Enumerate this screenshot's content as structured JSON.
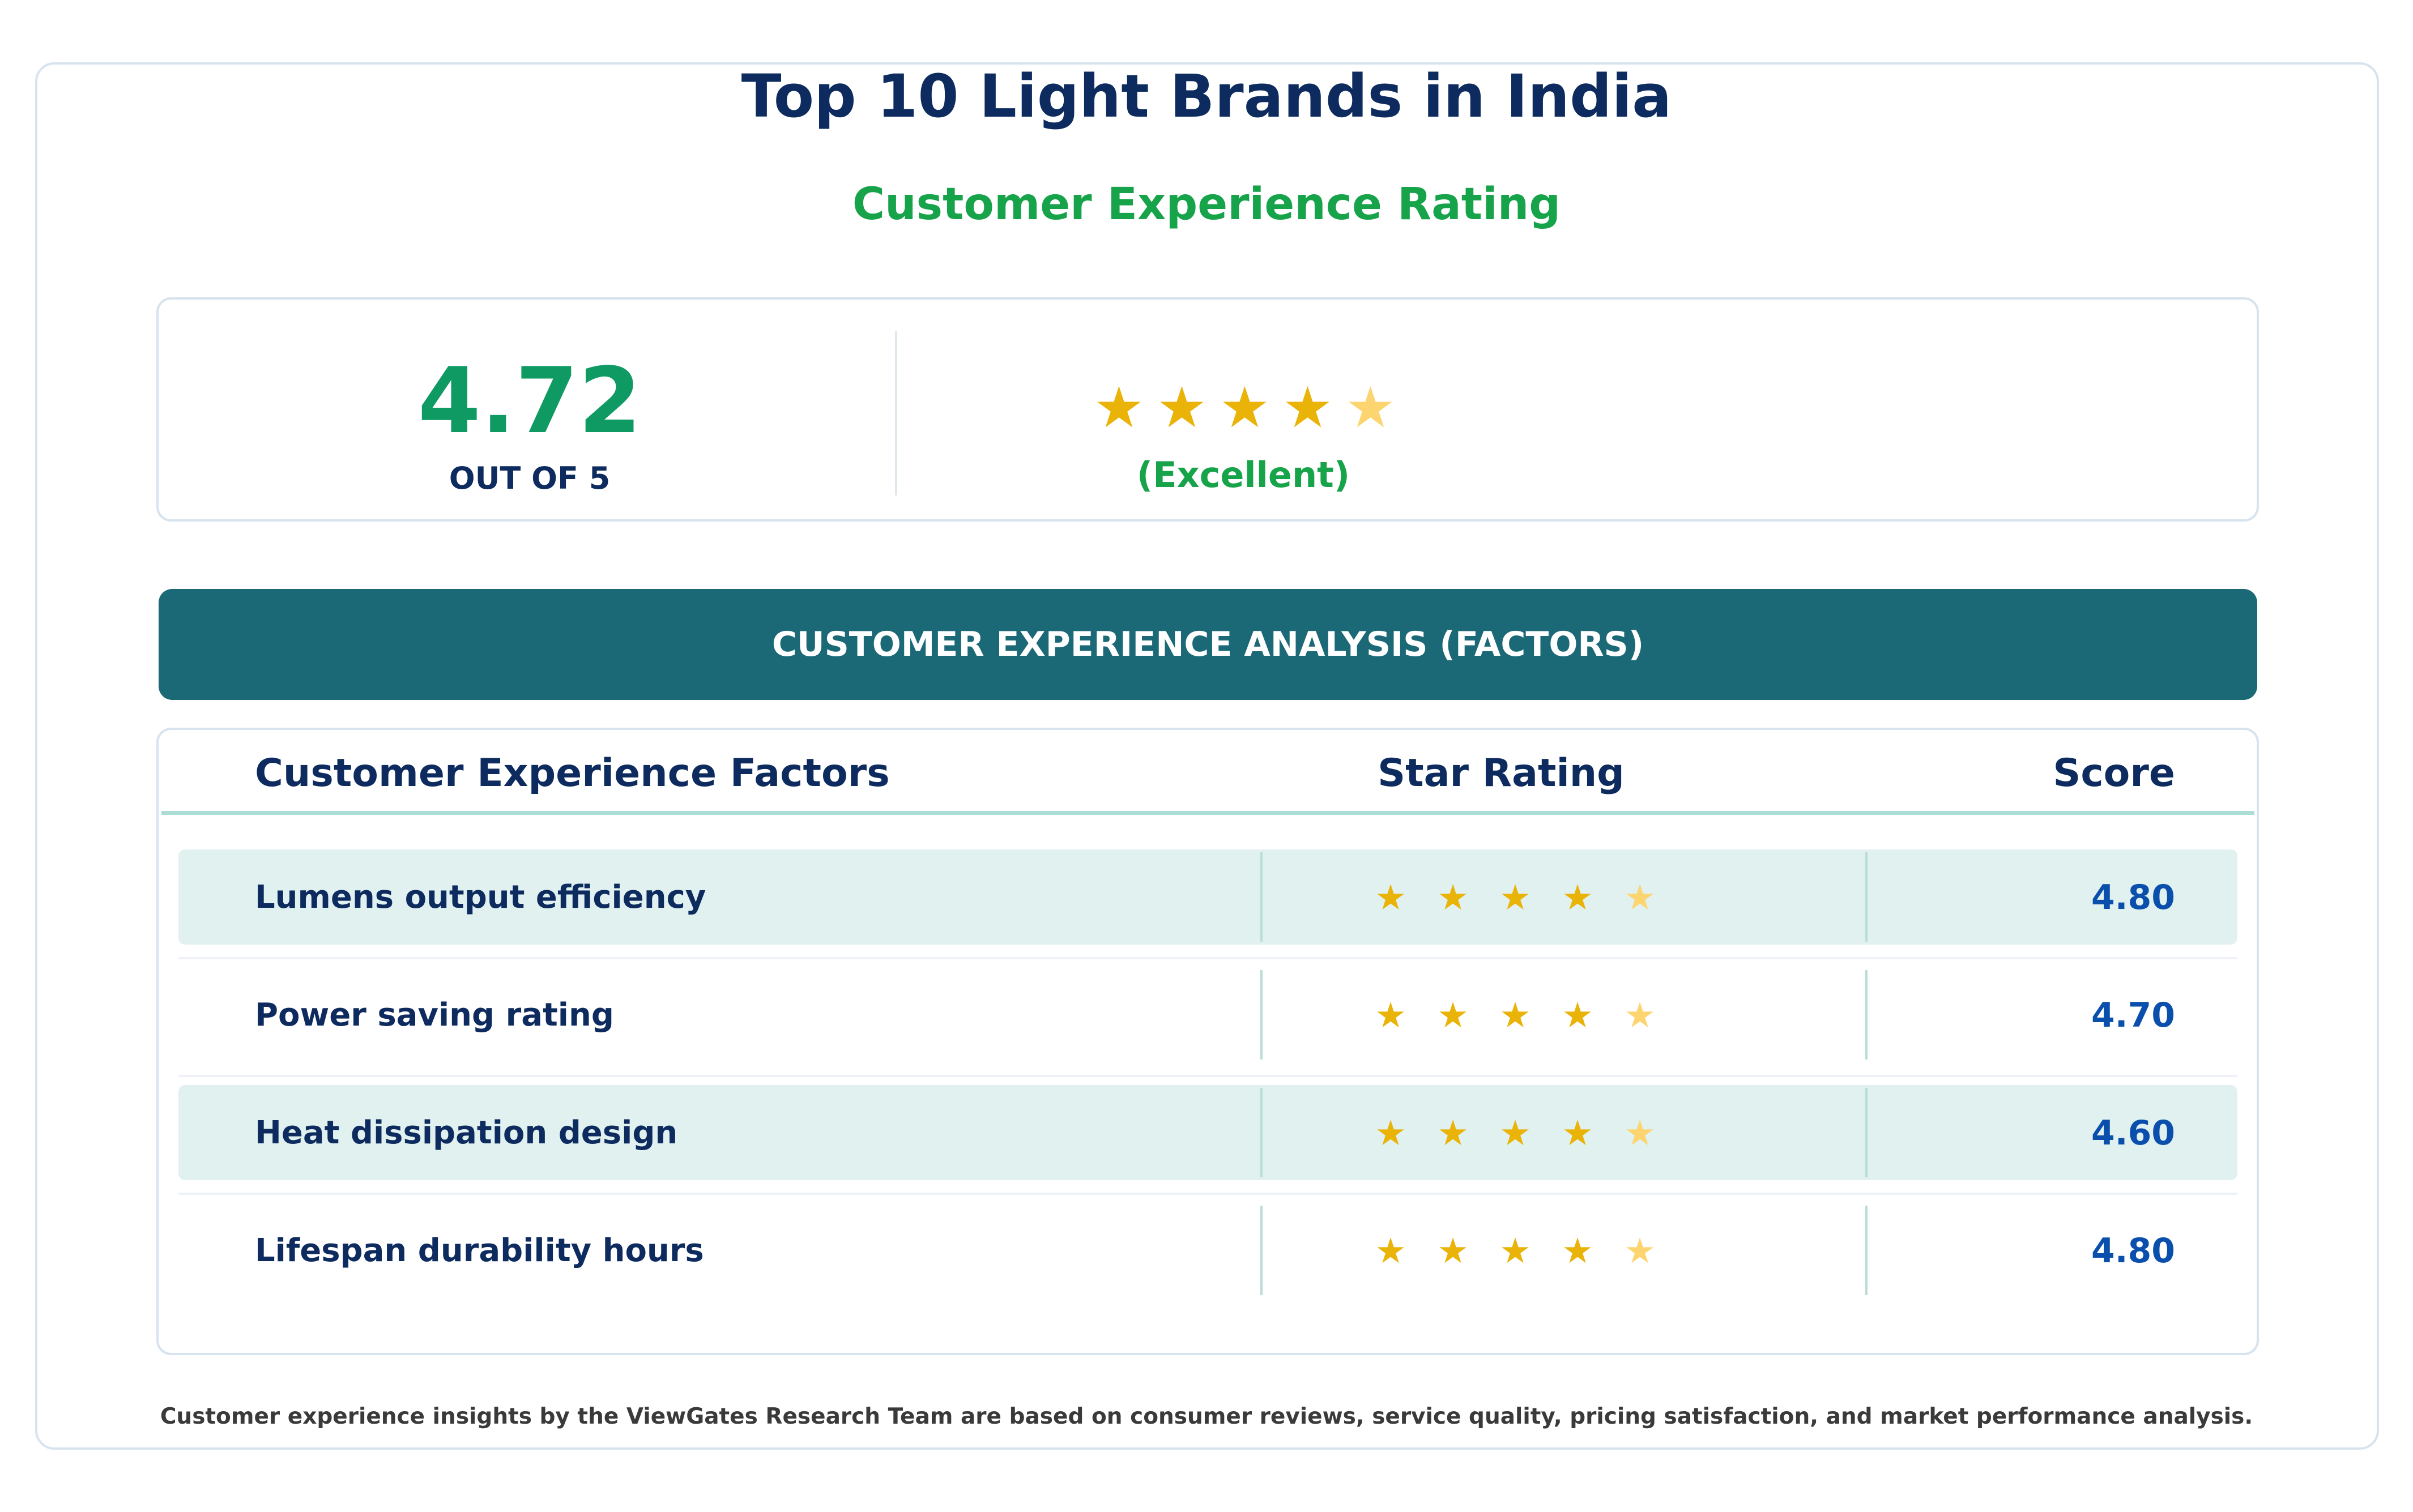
{
  "header": {
    "title": "Top 10 Light Brands in India",
    "subtitle": "Customer Experience Rating"
  },
  "summary": {
    "score": "4.72",
    "score_value": 4.72,
    "out_of": "OUT OF 5",
    "verdict": "(Excellent)",
    "stars": [
      "★",
      "★",
      "★",
      "★",
      "★"
    ]
  },
  "banner": {
    "label": "CUSTOMER EXPERIENCE ANALYSIS (FACTORS)"
  },
  "table": {
    "headers": {
      "factor": "Customer Experience Factors",
      "stars": "Star Rating",
      "score": "Score"
    },
    "rows": [
      {
        "factor": "Lumens output efficiency",
        "score": "4.80",
        "stars": [
          "★",
          "★",
          "★",
          "★",
          "★"
        ]
      },
      {
        "factor": "Power saving rating",
        "score": "4.70",
        "stars": [
          "★",
          "★",
          "★",
          "★",
          "★"
        ]
      },
      {
        "factor": "Heat dissipation design",
        "score": "4.60",
        "stars": [
          "★",
          "★",
          "★",
          "★",
          "★"
        ]
      },
      {
        "factor": "Lifespan durability hours",
        "score": "4.80",
        "stars": [
          "★",
          "★",
          "★",
          "★",
          "★"
        ]
      }
    ]
  },
  "footer": {
    "note": "Customer experience insights by the ViewGates Research Team are based on consumer reviews, service quality, pricing satisfaction, and market performance analysis."
  },
  "colors": {
    "title": "#0d2b5e",
    "accent_green": "#16a34a",
    "score_green": "#0f9a63",
    "banner": "#1b6876",
    "row_shade": "#e0f1f0",
    "star_full": "#eab308",
    "star_partial": "#fcd570",
    "score_blue": "#0b4fad"
  },
  "icons": {
    "rating_star": "star-icon"
  }
}
